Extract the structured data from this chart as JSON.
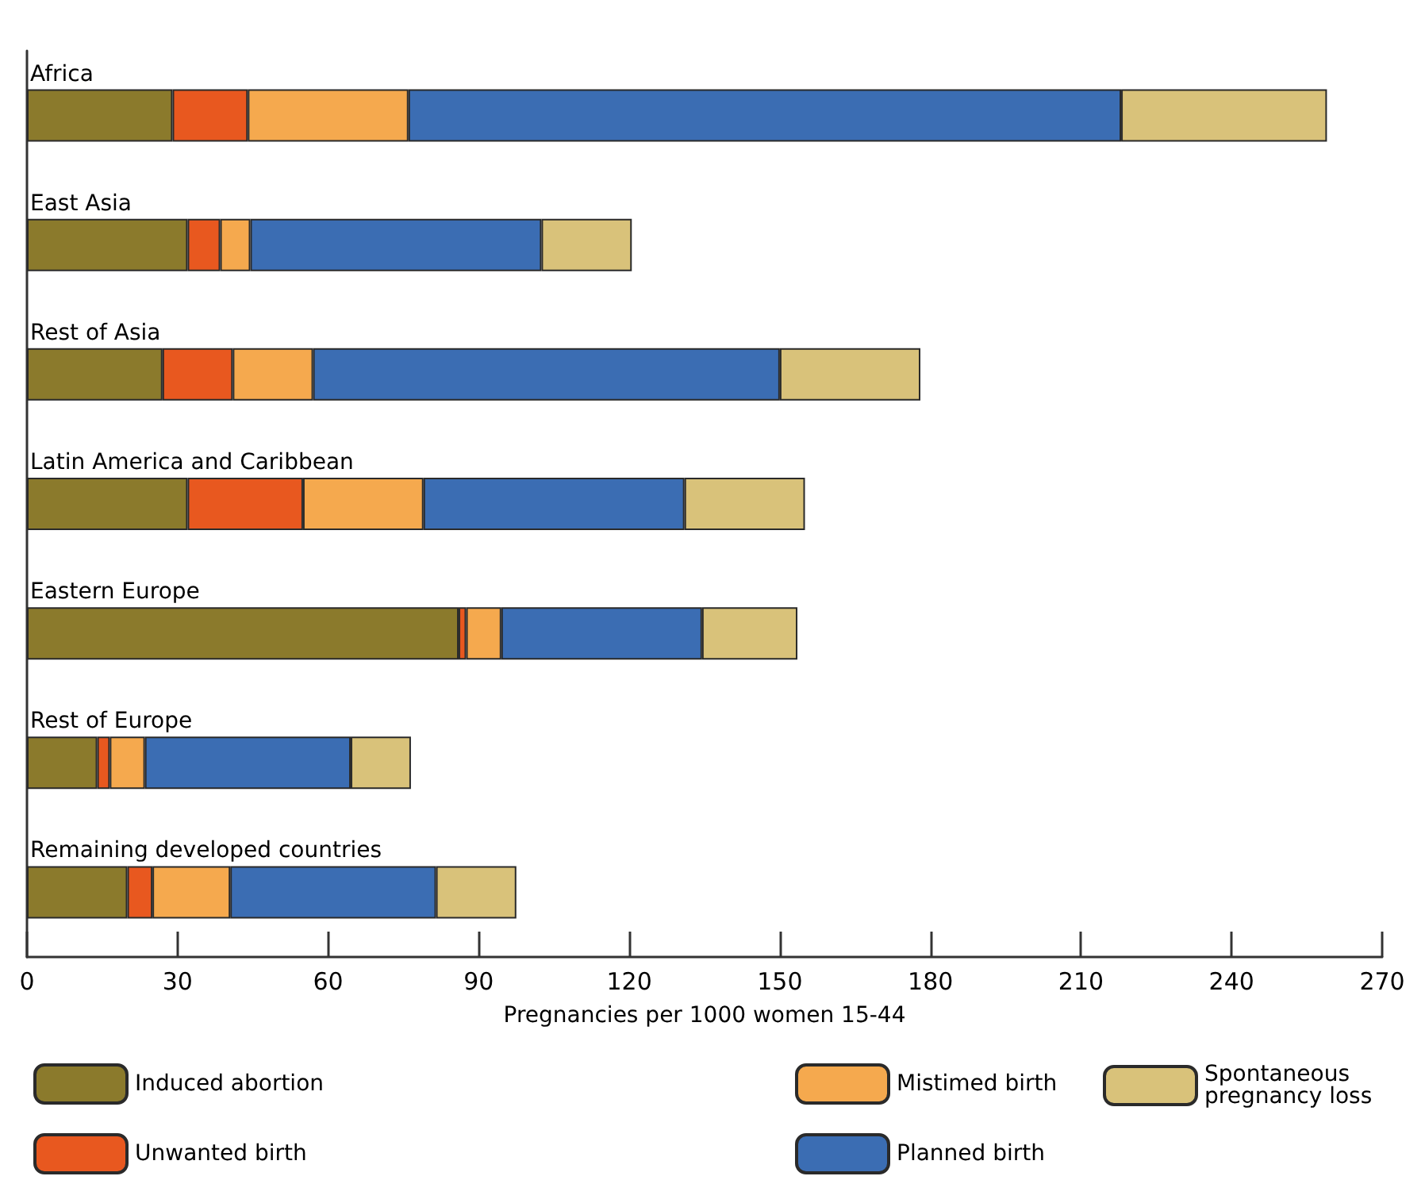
{
  "chart_data": {
    "type": "bar",
    "orientation": "horizontal",
    "stacked": true,
    "categories": [
      "Africa",
      "East Asia",
      "Rest of Asia",
      "Latin America and Caribbean",
      "Eastern Europe",
      "Rest of Europe",
      "Remaining developed countries"
    ],
    "series": [
      {
        "name": "Induced abortion",
        "color": "#8b7a2c",
        "values": [
          29,
          32,
          27,
          32,
          86,
          14,
          20
        ]
      },
      {
        "name": "Unwanted birth",
        "color": "#e8581f",
        "values": [
          15,
          6.5,
          14,
          23,
          1.5,
          2.5,
          5
        ]
      },
      {
        "name": "Mistimed birth",
        "color": "#f5a94e",
        "values": [
          32,
          6,
          16,
          24,
          7,
          7,
          15.5
        ]
      },
      {
        "name": "Planned birth",
        "color": "#3b6db3",
        "values": [
          142,
          58,
          93,
          52,
          40,
          41,
          41
        ]
      },
      {
        "name": "Spontaneous pregnancy loss",
        "color": "#d9c27a",
        "values": [
          41,
          18,
          28,
          24,
          19,
          12,
          16
        ]
      }
    ],
    "xlim": [
      0,
      270
    ],
    "xticks": [
      0,
      30,
      60,
      90,
      120,
      150,
      180,
      210,
      240,
      270
    ],
    "xlabel": "Pregnancies per 1000 women 15-44",
    "legend": "bottom",
    "grid": false
  }
}
